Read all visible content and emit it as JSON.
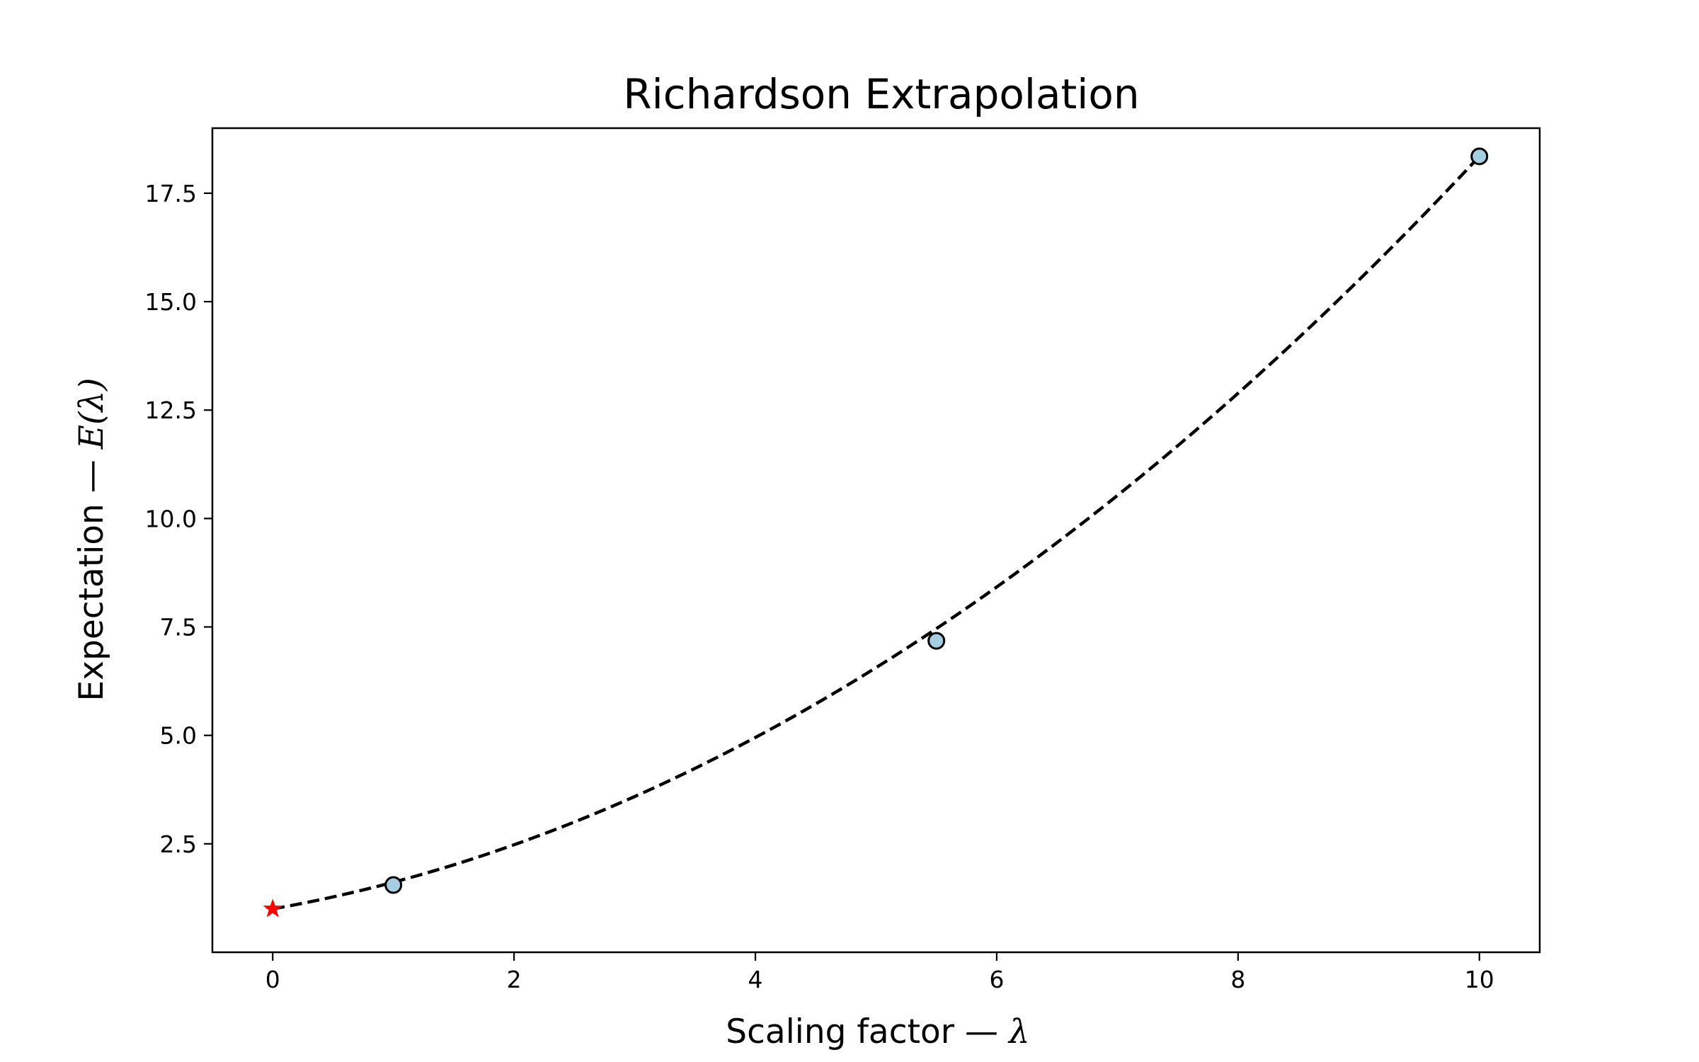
{
  "chart_data": {
    "type": "line",
    "title": "Richardson Extrapolation",
    "xlabel": "Scaling factor — ",
    "xlabel_symbol": "λ",
    "ylabel": "Expectation — ",
    "ylabel_symbol": "E(λ)",
    "xlim": [
      -0.5,
      10.5
    ],
    "ylim": [
      0.0,
      19.0
    ],
    "xticks": [
      0,
      2,
      4,
      6,
      8,
      10
    ],
    "yticks": [
      2.5,
      5.0,
      7.5,
      10.0,
      12.5,
      15.0,
      17.5
    ],
    "xtick_labels": [
      "0",
      "2",
      "4",
      "6",
      "8",
      "10"
    ],
    "ytick_labels": [
      "2.5",
      "5.0",
      "7.5",
      "10.0",
      "12.5",
      "15.0",
      "17.5"
    ],
    "grid": false,
    "series": [
      {
        "kind": "fit",
        "style": "dashed",
        "color": "#000000",
        "coefficients_c0_c1_c2": [
          1.0,
          0.49,
          0.1245
        ]
      },
      {
        "kind": "points",
        "marker": "circle",
        "color": "#a6cee3",
        "edgecolor": "#000000",
        "x": [
          1.0,
          5.5,
          10.0
        ],
        "y": [
          1.55,
          7.18,
          18.35
        ]
      },
      {
        "kind": "extrapolated",
        "marker": "star",
        "color": "#ff0000",
        "x": [
          0.0
        ],
        "y": [
          1.0
        ]
      }
    ]
  }
}
